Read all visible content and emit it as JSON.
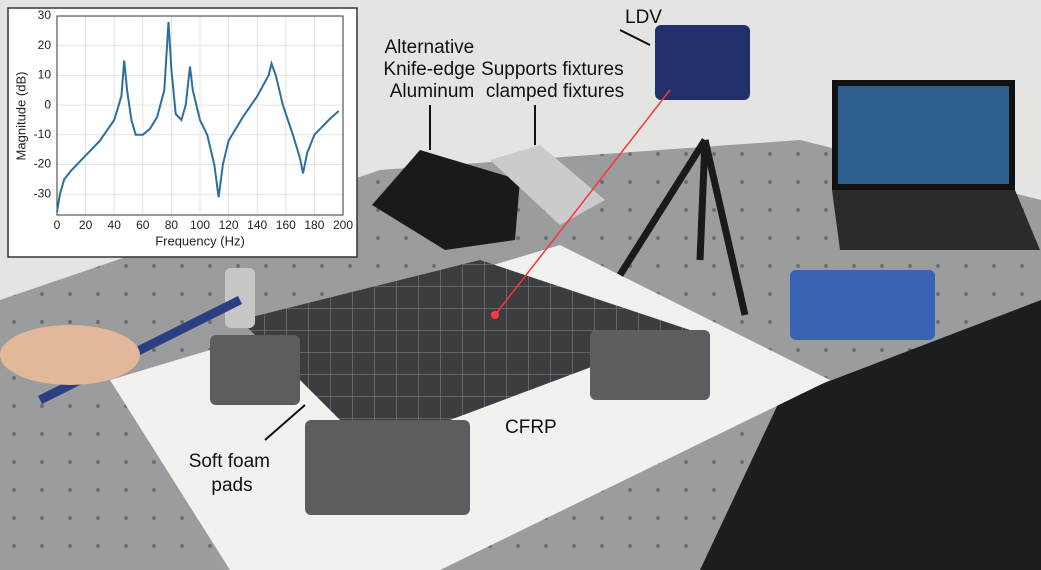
{
  "chart_data": {
    "type": "line",
    "xlabel": "Frequency (Hz)",
    "ylabel": "Magnitude (dB)",
    "x": [
      0,
      2,
      5,
      10,
      20,
      30,
      40,
      45,
      47,
      49,
      52,
      55,
      60,
      65,
      70,
      75,
      78,
      80,
      83,
      87,
      90,
      93,
      95,
      100,
      105,
      110,
      113,
      116,
      120,
      130,
      140,
      148,
      150,
      153,
      158,
      165,
      170,
      172,
      175,
      180,
      190,
      197
    ],
    "series": [
      {
        "color": "#2a6f9e",
        "values": [
          -36,
          -30,
          -25,
          -22,
          -17,
          -12,
          -5,
          3,
          15,
          5,
          -5,
          -10,
          -10,
          -8,
          -4,
          5,
          28,
          12,
          -3,
          -5,
          0,
          13,
          5,
          -5,
          -10,
          -20,
          -31,
          -20,
          -12,
          -4,
          3,
          10,
          14,
          10,
          0,
          -10,
          -18,
          -23,
          -16,
          -10,
          -5,
          -2
        ]
      }
    ],
    "xlim": [
      0,
      200
    ],
    "ylim": [
      -37,
      30
    ],
    "xticks": [
      0,
      20,
      40,
      60,
      80,
      100,
      120,
      140,
      160,
      180,
      200
    ],
    "yticks": [
      -30,
      -20,
      -10,
      0,
      10,
      20,
      30
    ],
    "grid": true
  },
  "annotations": {
    "ldv": "LDV",
    "alternative": [
      "Alternative",
      "Knife-edge",
      "Aluminum"
    ],
    "supports": [
      "Supports fixtures",
      "clamped fixtures"
    ],
    "cfrp": "CFRP",
    "foam": [
      "Soft foam",
      "pads"
    ]
  }
}
